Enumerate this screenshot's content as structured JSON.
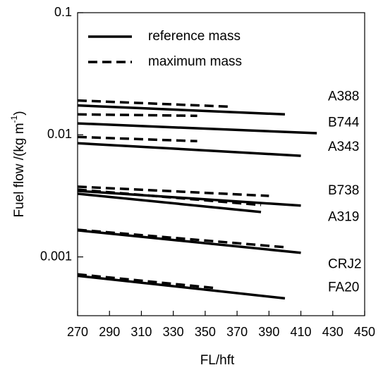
{
  "chart_data": {
    "type": "line",
    "log_y": true,
    "xlabel": "FL/hft",
    "ylabel": {
      "text": "Fuel flow /(kg m",
      "sup": "-1",
      "end": ")"
    },
    "xlim": [
      270,
      450
    ],
    "xticks": [
      270,
      290,
      310,
      330,
      350,
      370,
      390,
      410,
      430,
      450
    ],
    "ylim": [
      0.00033,
      0.1
    ],
    "yticks": [
      0.001,
      0.01,
      0.1
    ],
    "color": "#000000",
    "legend": [
      {
        "label": "reference mass",
        "dashed": false
      },
      {
        "label": "maximum mass",
        "dashed": true
      }
    ],
    "aircraft": [
      {
        "name": "A388",
        "label_at": 0.0204,
        "reference": {
          "x": [
            270,
            400
          ],
          "values": [
            0.0174,
            0.0147
          ]
        },
        "maximum": {
          "x": [
            270,
            365
          ],
          "values": [
            0.0191,
            0.017
          ]
        }
      },
      {
        "name": "B744",
        "label_at": 0.0125,
        "reference": {
          "x": [
            270,
            420
          ],
          "values": [
            0.0124,
            0.0103
          ]
        },
        "maximum": {
          "x": [
            270,
            345
          ],
          "values": [
            0.0147,
            0.0143
          ]
        }
      },
      {
        "name": "A343",
        "label_at": 0.00789,
        "reference": {
          "x": [
            270,
            410
          ],
          "values": [
            0.00853,
            0.00673
          ]
        },
        "maximum": {
          "x": [
            270,
            345
          ],
          "values": [
            0.0096,
            0.00887
          ]
        }
      },
      {
        "name": "B738",
        "label_at": 0.00347,
        "reference": {
          "x": [
            270,
            410
          ],
          "values": [
            0.00347,
            0.00263
          ]
        },
        "maximum": {
          "x": [
            270,
            390
          ],
          "values": [
            0.00376,
            0.00316
          ]
        }
      },
      {
        "name": "A319",
        "label_at": 0.0021,
        "reference": {
          "x": [
            270,
            385
          ],
          "values": [
            0.00329,
            0.00233
          ]
        },
        "maximum": {
          "x": [
            270,
            385
          ],
          "values": [
            0.00356,
            0.00266
          ]
        }
      },
      {
        "name": "CRJ2",
        "label_at": 0.000865,
        "reference": {
          "x": [
            270,
            410
          ],
          "values": [
            0.00165,
            0.00108
          ]
        },
        "maximum": {
          "x": [
            270,
            400
          ],
          "values": [
            0.00167,
            0.0012
          ]
        }
      },
      {
        "name": "FA20",
        "label_at": 0.000558,
        "reference": {
          "x": [
            270,
            400
          ],
          "values": [
            0.0007,
            0.000458
          ]
        },
        "maximum": {
          "x": [
            270,
            355
          ],
          "values": [
            0.00072,
            0.000558
          ]
        }
      }
    ]
  }
}
